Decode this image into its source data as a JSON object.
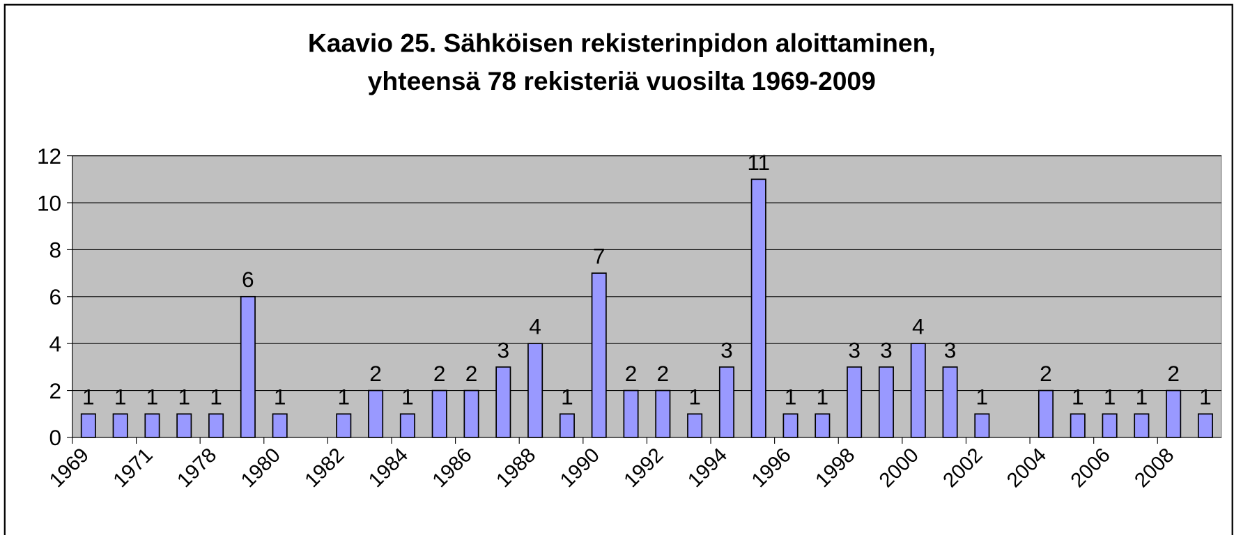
{
  "chart_data": {
    "type": "bar",
    "title": [
      "Kaavio 25. Sähköisen rekisterinpidon aloittaminen,",
      "yhteensä 78 rekisteriä vuosilta 1969-2009"
    ],
    "categories": [
      "1969",
      null,
      "1971",
      null,
      "1978",
      null,
      "1980",
      null,
      "1982",
      null,
      "1984",
      null,
      "1986",
      null,
      "1988",
      null,
      "1990",
      null,
      "1992",
      null,
      "1994",
      null,
      "1996",
      null,
      "1998",
      null,
      "2000",
      null,
      "2002",
      null,
      "2004",
      null,
      "2006",
      null,
      "2008",
      null
    ],
    "values": [
      1,
      1,
      1,
      1,
      1,
      6,
      1,
      null,
      1,
      2,
      1,
      2,
      2,
      3,
      4,
      1,
      7,
      2,
      2,
      1,
      3,
      11,
      1,
      1,
      3,
      3,
      4,
      3,
      1,
      null,
      2,
      1,
      1,
      1,
      2,
      1
    ],
    "color": "#9999ff",
    "plot_background": "#c0c0c0",
    "ylim": [
      0,
      12
    ],
    "yticks": [
      0,
      2,
      4,
      6,
      8,
      10,
      12
    ],
    "grid": true
  }
}
